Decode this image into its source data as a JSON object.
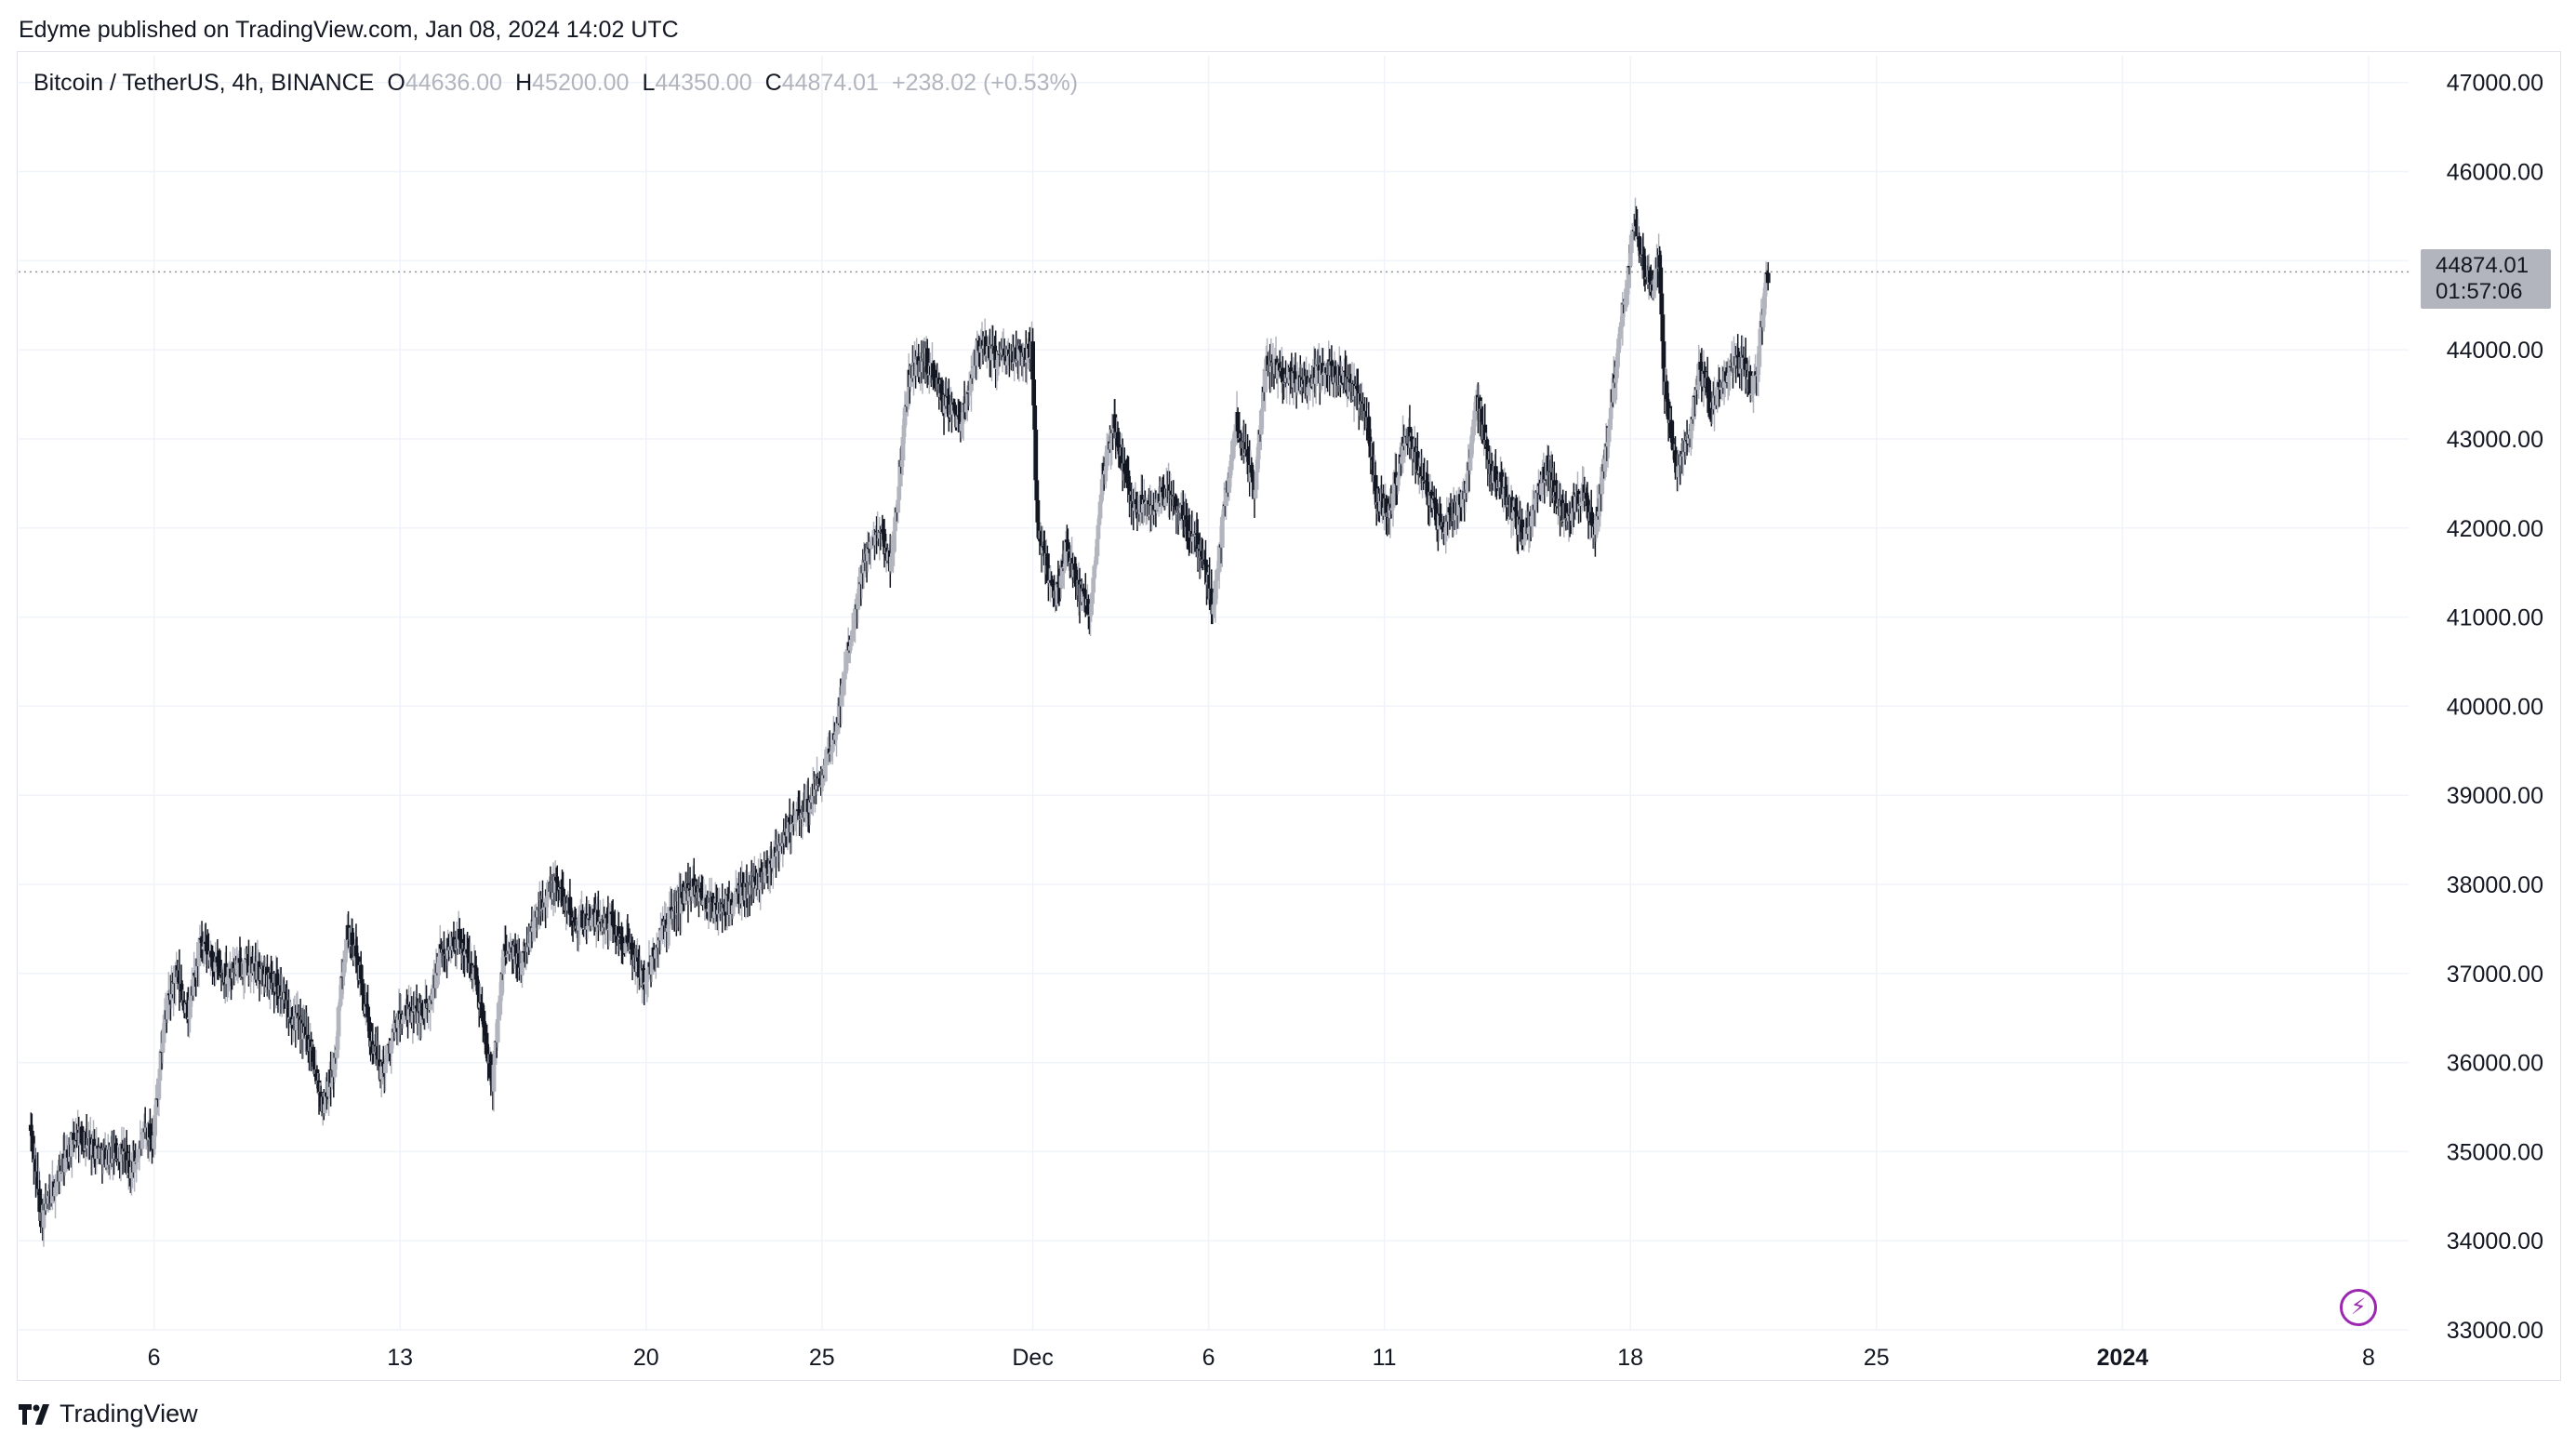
{
  "header": {
    "text": "Edyme published on TradingView.com, Jan 08, 2024 14:02 UTC"
  },
  "legend": {
    "symbol": "Bitcoin / TetherUS, 4h, BINANCE",
    "open_key": "O",
    "open": "44636.00",
    "high_key": "H",
    "high": "45200.00",
    "low_key": "L",
    "low": "44350.00",
    "close_key": "C",
    "close": "44874.01",
    "change": "+238.02 (+0.53%)"
  },
  "price_label": {
    "price": "44874.01",
    "countdown": "01:57:06"
  },
  "footer": {
    "brand": "TradingView"
  },
  "icons": {
    "logo": "tradingview-logo-icon",
    "snapshot": "lightning-icon"
  },
  "colors": {
    "bull": "#b2b5be",
    "bear": "#131722",
    "grid": "#f0f3fa",
    "accent": "#9c27b0"
  },
  "chart_data": {
    "type": "candlestick",
    "timeframe": "4h",
    "y_ticks": [
      "33000.00",
      "34000.00",
      "35000.00",
      "36000.00",
      "37000.00",
      "38000.00",
      "39000.00",
      "40000.00",
      "41000.00",
      "42000.00",
      "43000.00",
      "44000.00",
      "45000.00",
      "46000.00",
      "47000.00"
    ],
    "ylim": [
      33000,
      47300
    ],
    "x_ticks": [
      {
        "label": "6",
        "x": 2
      },
      {
        "label": "13",
        "x": 44
      },
      {
        "label": "20",
        "x": 86
      },
      {
        "label": "25",
        "x": 116
      },
      {
        "label": "Dec",
        "x": 152
      },
      {
        "label": "6",
        "x": 182
      },
      {
        "label": "11",
        "x": 212
      },
      {
        "label": "18",
        "x": 254
      },
      {
        "label": "25",
        "x": 296
      },
      {
        "label": "2024",
        "x": 338,
        "bold": true
      },
      {
        "label": "8",
        "x": 380
      }
    ],
    "last_price": 44874.01,
    "keyframes": [
      {
        "x": -19,
        "y": 35300
      },
      {
        "x": -17,
        "y": 34250
      },
      {
        "x": -14,
        "y": 34750
      },
      {
        "x": -11,
        "y": 35200
      },
      {
        "x": -6,
        "y": 34950
      },
      {
        "x": -3,
        "y": 35000
      },
      {
        "x": -2,
        "y": 34750
      },
      {
        "x": 1,
        "y": 35250
      },
      {
        "x": 2,
        "y": 35150
      },
      {
        "x": 4,
        "y": 36500
      },
      {
        "x": 6,
        "y": 37000
      },
      {
        "x": 8,
        "y": 36500
      },
      {
        "x": 10,
        "y": 37300
      },
      {
        "x": 14,
        "y": 37000
      },
      {
        "x": 18,
        "y": 37100
      },
      {
        "x": 23,
        "y": 36900
      },
      {
        "x": 27,
        "y": 36400
      },
      {
        "x": 29,
        "y": 36200
      },
      {
        "x": 31,
        "y": 35500
      },
      {
        "x": 33,
        "y": 36000
      },
      {
        "x": 35,
        "y": 37500
      },
      {
        "x": 37,
        "y": 37100
      },
      {
        "x": 39,
        "y": 36300
      },
      {
        "x": 41,
        "y": 35900
      },
      {
        "x": 44,
        "y": 36500
      },
      {
        "x": 49,
        "y": 36600
      },
      {
        "x": 51,
        "y": 37200
      },
      {
        "x": 54,
        "y": 37400
      },
      {
        "x": 57,
        "y": 37000
      },
      {
        "x": 60,
        "y": 35800
      },
      {
        "x": 62,
        "y": 37300
      },
      {
        "x": 65,
        "y": 37100
      },
      {
        "x": 68,
        "y": 37800
      },
      {
        "x": 71,
        "y": 38000
      },
      {
        "x": 74,
        "y": 37600
      },
      {
        "x": 80,
        "y": 37600
      },
      {
        "x": 83,
        "y": 37300
      },
      {
        "x": 86,
        "y": 36900
      },
      {
        "x": 89,
        "y": 37500
      },
      {
        "x": 94,
        "y": 38000
      },
      {
        "x": 98,
        "y": 37700
      },
      {
        "x": 101,
        "y": 37800
      },
      {
        "x": 106,
        "y": 38100
      },
      {
        "x": 110,
        "y": 38600
      },
      {
        "x": 114,
        "y": 38900
      },
      {
        "x": 118,
        "y": 39500
      },
      {
        "x": 121,
        "y": 40800
      },
      {
        "x": 124,
        "y": 41800
      },
      {
        "x": 126,
        "y": 42000
      },
      {
        "x": 128,
        "y": 41600
      },
      {
        "x": 131,
        "y": 43700
      },
      {
        "x": 134,
        "y": 43900
      },
      {
        "x": 137,
        "y": 43400
      },
      {
        "x": 140,
        "y": 43200
      },
      {
        "x": 143,
        "y": 44100
      },
      {
        "x": 146,
        "y": 43900
      },
      {
        "x": 149,
        "y": 43900
      },
      {
        "x": 152,
        "y": 44000
      },
      {
        "x": 153,
        "y": 42000
      },
      {
        "x": 156,
        "y": 41200
      },
      {
        "x": 158,
        "y": 41800
      },
      {
        "x": 160,
        "y": 41300
      },
      {
        "x": 162,
        "y": 41000
      },
      {
        "x": 164,
        "y": 42600
      },
      {
        "x": 166,
        "y": 43200
      },
      {
        "x": 169,
        "y": 42300
      },
      {
        "x": 172,
        "y": 42200
      },
      {
        "x": 175,
        "y": 42400
      },
      {
        "x": 178,
        "y": 42100
      },
      {
        "x": 181,
        "y": 41700
      },
      {
        "x": 183,
        "y": 41100
      },
      {
        "x": 185,
        "y": 42300
      },
      {
        "x": 187,
        "y": 43200
      },
      {
        "x": 190,
        "y": 42400
      },
      {
        "x": 192,
        "y": 43900
      },
      {
        "x": 195,
        "y": 43700
      },
      {
        "x": 199,
        "y": 43600
      },
      {
        "x": 202,
        "y": 43800
      },
      {
        "x": 205,
        "y": 43700
      },
      {
        "x": 207,
        "y": 43500
      },
      {
        "x": 209,
        "y": 43300
      },
      {
        "x": 211,
        "y": 42300
      },
      {
        "x": 213,
        "y": 42200
      },
      {
        "x": 216,
        "y": 43100
      },
      {
        "x": 218,
        "y": 42700
      },
      {
        "x": 220,
        "y": 42300
      },
      {
        "x": 222,
        "y": 42000
      },
      {
        "x": 226,
        "y": 42400
      },
      {
        "x": 228,
        "y": 43500
      },
      {
        "x": 230,
        "y": 42700
      },
      {
        "x": 232,
        "y": 42500
      },
      {
        "x": 234,
        "y": 42200
      },
      {
        "x": 236,
        "y": 41900
      },
      {
        "x": 238,
        "y": 42300
      },
      {
        "x": 240,
        "y": 42700
      },
      {
        "x": 242,
        "y": 42200
      },
      {
        "x": 244,
        "y": 42200
      },
      {
        "x": 246,
        "y": 42400
      },
      {
        "x": 248,
        "y": 41900
      },
      {
        "x": 250,
        "y": 42900
      },
      {
        "x": 253,
        "y": 44500
      },
      {
        "x": 255,
        "y": 45500
      },
      {
        "x": 257,
        "y": 44800
      },
      {
        "x": 258,
        "y": 44700
      },
      {
        "x": 259,
        "y": 45100
      },
      {
        "x": 260,
        "y": 43600
      },
      {
        "x": 262,
        "y": 42600
      },
      {
        "x": 264,
        "y": 43000
      },
      {
        "x": 266,
        "y": 43800
      },
      {
        "x": 268,
        "y": 43400
      },
      {
        "x": 270,
        "y": 43600
      },
      {
        "x": 272,
        "y": 43900
      },
      {
        "x": 274,
        "y": 43800
      },
      {
        "x": 275,
        "y": 43500
      },
      {
        "x": 276,
        "y": 43900
      },
      {
        "x": 277,
        "y": 44600
      },
      {
        "x": 277.5,
        "y": 44874
      }
    ]
  }
}
